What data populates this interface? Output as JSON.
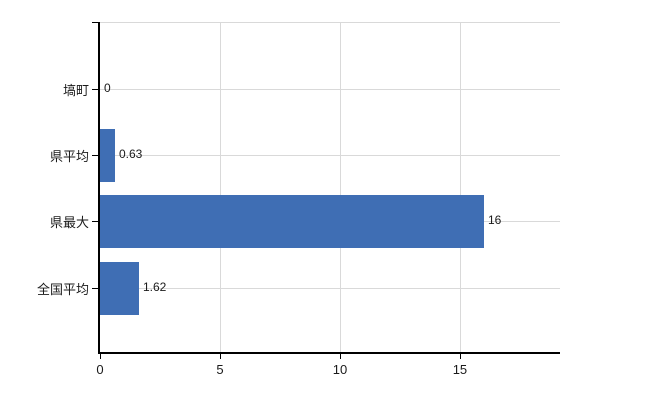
{
  "chart_data": {
    "type": "bar",
    "orientation": "horizontal",
    "title": "",
    "xlabel": "",
    "ylabel": "",
    "categories": [
      "塙町",
      "県平均",
      "県最大",
      "全国平均"
    ],
    "values": [
      0,
      0.63,
      16,
      1.62
    ],
    "value_labels": [
      "0",
      "0.63",
      "16",
      "1.62"
    ],
    "x_ticks": [
      0,
      5,
      10,
      15
    ],
    "x_tick_labels": [
      "0",
      "5",
      "10",
      "15"
    ],
    "xlim": [
      0,
      19.17
    ],
    "grid": true,
    "legend": false,
    "colors": {
      "bar": "#3f6eb4",
      "axis": "#000000",
      "gridline": "#d9d9d9",
      "text": "#1a1a1a",
      "background": "#ffffff"
    }
  }
}
